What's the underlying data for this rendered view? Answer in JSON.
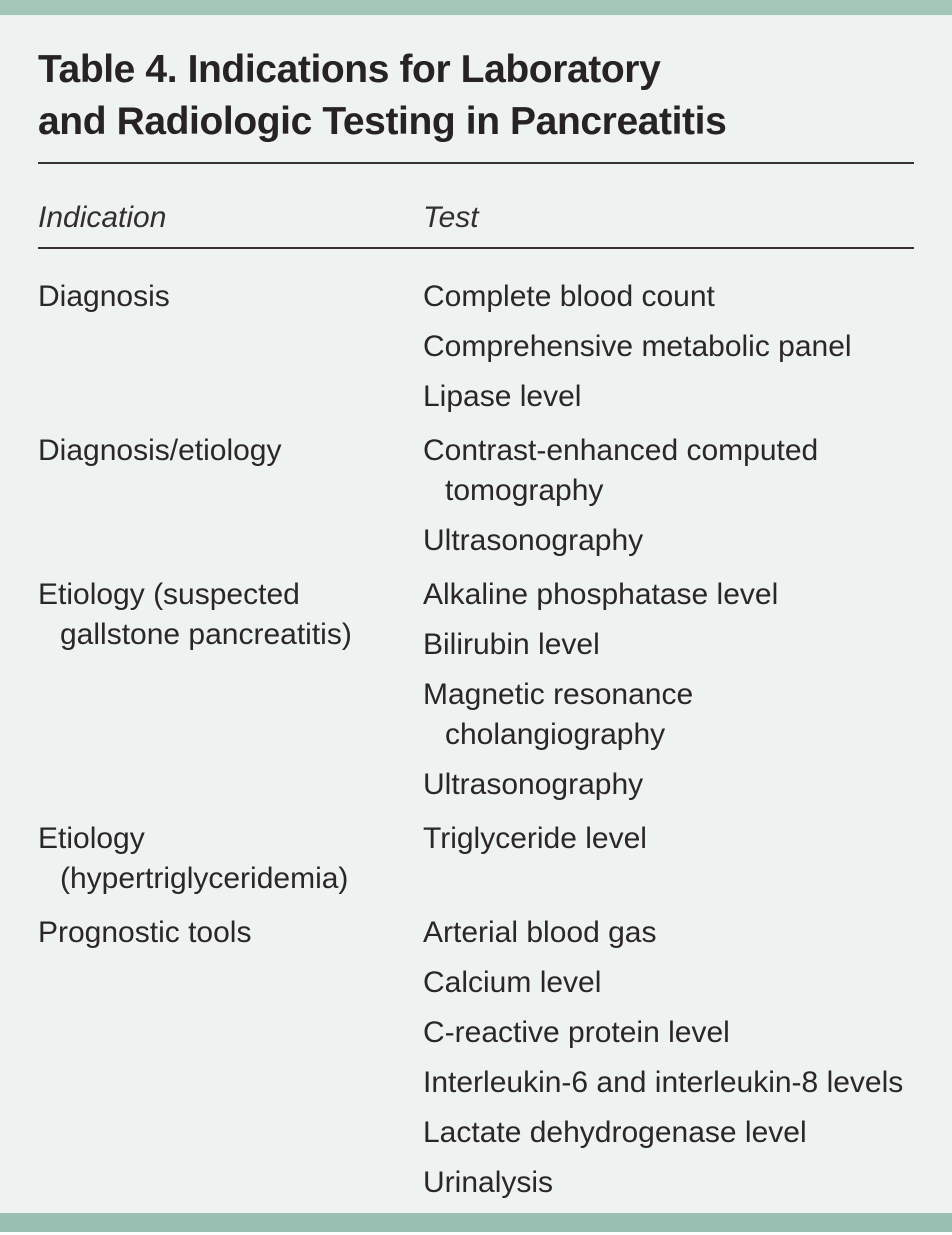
{
  "header": {
    "title_lines": [
      "Table 4. Indications for Laboratory",
      "and Radiologic Testing in Pancreatitis"
    ]
  },
  "table": {
    "columns": [
      "Indication",
      "Test"
    ],
    "rows": [
      {
        "indication": [
          "Diagnosis"
        ],
        "tests": [
          [
            "Complete blood count"
          ],
          [
            "Comprehensive metabolic panel"
          ],
          [
            "Lipase level"
          ]
        ]
      },
      {
        "indication": [
          "Diagnosis/etiology"
        ],
        "tests": [
          [
            "Contrast-enhanced computed",
            "tomography"
          ],
          [
            "Ultrasonography"
          ]
        ]
      },
      {
        "indication": [
          "Etiology (suspected",
          "gallstone pancreatitis)"
        ],
        "tests": [
          [
            "Alkaline phosphatase level"
          ],
          [
            "Bilirubin level"
          ],
          [
            "Magnetic resonance",
            "cholangiography"
          ],
          [
            "Ultrasonography"
          ]
        ]
      },
      {
        "indication": [
          "Etiology",
          "(hypertriglyceridemia)"
        ],
        "tests": [
          [
            "Triglyceride level"
          ]
        ]
      },
      {
        "indication": [
          "Prognostic tools"
        ],
        "tests": [
          [
            "Arterial blood gas"
          ],
          [
            "Calcium level"
          ],
          [
            "C-reactive protein level"
          ],
          [
            "Interleukin-6 and interleukin-8 levels"
          ],
          [
            "Lactate dehydrogenase level"
          ],
          [
            "Urinalysis"
          ]
        ]
      }
    ]
  },
  "colors": {
    "background": "#eef2f0",
    "top_bar": "#a4c6b9",
    "bottom_bar": "#98bfb1",
    "text": "#2b2627",
    "rule": "#383233"
  }
}
